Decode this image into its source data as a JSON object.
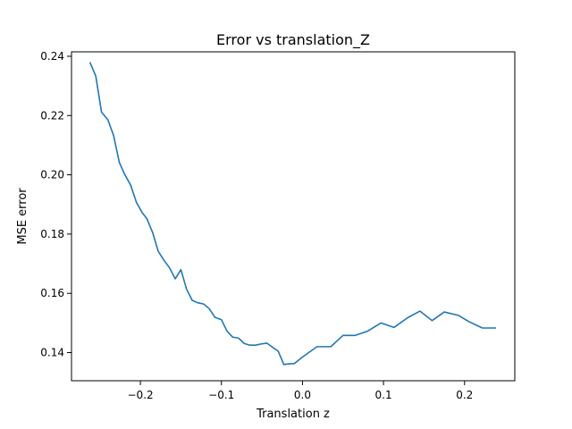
{
  "chart_data": {
    "type": "line",
    "title": "Error vs translation_Z",
    "xlabel": "Translation z",
    "ylabel": "MSE error",
    "xlim": [
      -0.285,
      0.262
    ],
    "ylim": [
      0.1305,
      0.2415
    ],
    "xticks": [
      -0.2,
      -0.1,
      0.0,
      0.1,
      0.2
    ],
    "xtick_labels": [
      "−0.2",
      "−0.1",
      "0.0",
      "0.1",
      "0.2"
    ],
    "yticks": [
      0.14,
      0.16,
      0.18,
      0.2,
      0.22,
      0.24
    ],
    "ytick_labels": [
      "0.14",
      "0.16",
      "0.18",
      "0.20",
      "0.22",
      "0.24"
    ],
    "grid": false,
    "legend": "none",
    "series": [
      {
        "color": "#1f77b4",
        "x": [
          -0.262,
          -0.255,
          -0.248,
          -0.24,
          -0.233,
          -0.226,
          -0.22,
          -0.212,
          -0.205,
          -0.198,
          -0.192,
          -0.185,
          -0.178,
          -0.171,
          -0.164,
          -0.157,
          -0.15,
          -0.143,
          -0.136,
          -0.129,
          -0.122,
          -0.115,
          -0.108,
          -0.1,
          -0.093,
          -0.086,
          -0.079,
          -0.072,
          -0.065,
          -0.058,
          -0.051,
          -0.044,
          -0.037,
          -0.03,
          -0.023,
          -0.016,
          -0.01,
          0.0,
          0.018,
          0.035,
          0.05,
          0.065,
          0.08,
          0.097,
          0.113,
          0.13,
          0.145,
          0.16,
          0.175,
          0.192,
          0.205,
          0.222,
          0.238
        ],
        "y": [
          0.2378,
          0.2333,
          0.2212,
          0.2185,
          0.2132,
          0.2042,
          0.2005,
          0.1965,
          0.1908,
          0.1873,
          0.1852,
          0.1806,
          0.1742,
          0.1712,
          0.1686,
          0.1649,
          0.168,
          0.1614,
          0.1576,
          0.1568,
          0.1564,
          0.1548,
          0.1519,
          0.1511,
          0.1472,
          0.1452,
          0.1449,
          0.1431,
          0.1425,
          0.1425,
          0.1429,
          0.1432,
          0.1418,
          0.1405,
          0.136,
          0.1362,
          0.1363,
          0.1385,
          0.142,
          0.142,
          0.1458,
          0.1458,
          0.1472,
          0.15,
          0.1485,
          0.1518,
          0.154,
          0.1508,
          0.1537,
          0.1526,
          0.1505,
          0.1483,
          0.1483
        ]
      }
    ]
  }
}
